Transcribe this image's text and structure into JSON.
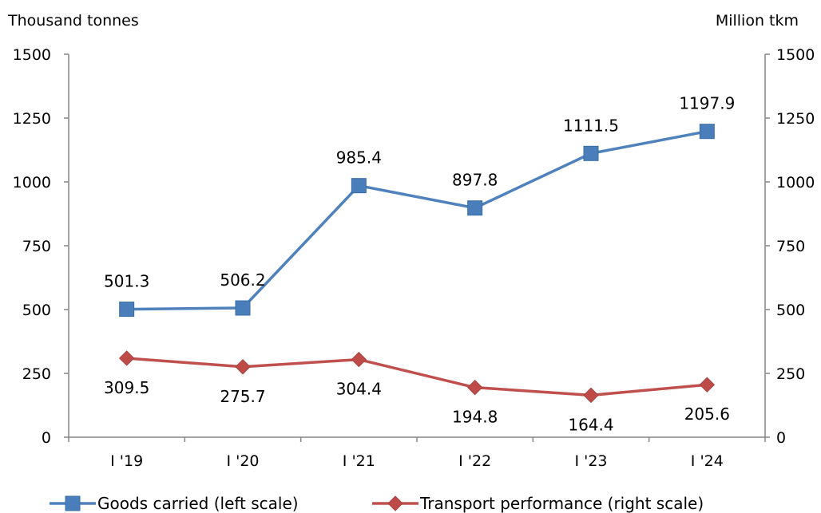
{
  "chart_data": {
    "type": "line",
    "title": "",
    "y_left_label": "Thousand tonnes",
    "y_right_label": "Million tkm",
    "ylim_left": [
      0,
      1500
    ],
    "ylim_right": [
      0,
      1500
    ],
    "yticks_left": [
      "0",
      "250",
      "500",
      "750",
      "1000",
      "1250",
      "1500"
    ],
    "yticks_right": [
      "0",
      "250",
      "500",
      "750",
      "1000",
      "1250",
      "1500"
    ],
    "categories": [
      "I '19",
      "I '20",
      "I '21",
      "I '22",
      "I '23",
      "I '24"
    ],
    "grid": false,
    "legend_position": "bottom",
    "series": [
      {
        "name": "Goods carried (left scale)",
        "axis": "left",
        "marker": "square",
        "color": "#4f81bd",
        "marker_color": "#4a7ebb",
        "values": [
          501.3,
          506.2,
          985.4,
          897.8,
          1111.5,
          1197.9
        ],
        "labels": [
          "501.3",
          "506.2",
          "985.4",
          "897.8",
          "1111.5",
          "1197.9"
        ]
      },
      {
        "name": "Transport performance (right scale)",
        "axis": "right",
        "marker": "diamond",
        "color": "#c0504d",
        "marker_color": "#be4b48",
        "values": [
          309.5,
          275.7,
          304.4,
          194.8,
          164.4,
          205.6
        ],
        "labels": [
          "309.5",
          "275.7",
          "304.4",
          "194.8",
          "164.4",
          "205.6"
        ]
      }
    ]
  }
}
